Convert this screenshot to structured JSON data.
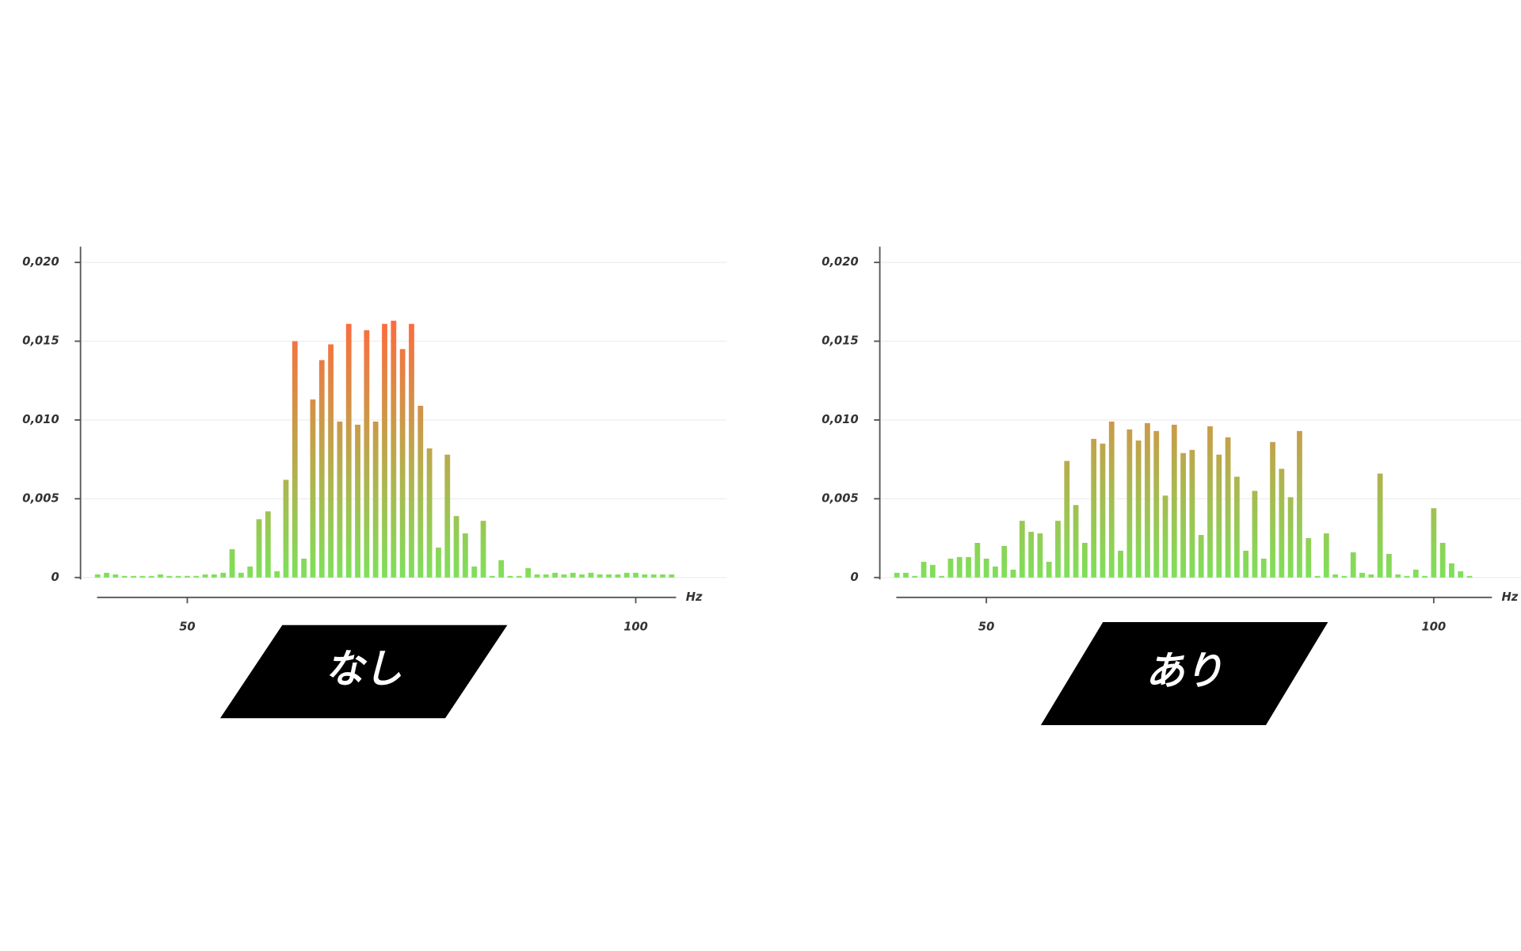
{
  "chart_data": [
    {
      "type": "bar",
      "caption": "なし",
      "x_label": "Hz",
      "x": [
        40,
        41,
        42,
        43,
        44,
        45,
        46,
        47,
        48,
        49,
        50,
        51,
        52,
        53,
        54,
        55,
        56,
        57,
        58,
        59,
        60,
        61,
        62,
        63,
        64,
        65,
        66,
        67,
        68,
        69,
        70,
        71,
        72,
        73,
        74,
        75,
        76,
        77,
        78,
        79,
        80,
        81,
        82,
        83,
        84,
        85,
        86,
        87,
        88,
        89,
        90,
        91,
        92,
        93,
        94,
        95,
        96,
        97,
        98,
        99,
        100,
        101,
        102,
        103,
        104
      ],
      "values": [
        0.0002,
        0.0003,
        0.0002,
        0.0001,
        0.0001,
        0.0001,
        0.0001,
        0.0002,
        0.0001,
        0.0001,
        0.0001,
        0.0001,
        0.0002,
        0.0002,
        0.0003,
        0.0018,
        0.0003,
        0.0007,
        0.0037,
        0.0042,
        0.0004,
        0.0062,
        0.015,
        0.0012,
        0.0113,
        0.0138,
        0.0148,
        0.0099,
        0.0161,
        0.0097,
        0.0157,
        0.0099,
        0.0161,
        0.0163,
        0.0145,
        0.0161,
        0.0109,
        0.0082,
        0.0019,
        0.0078,
        0.0039,
        0.0028,
        0.0007,
        0.0036,
        0.0001,
        0.0011,
        0.0001,
        0.0001,
        0.0006,
        0.0002,
        0.0002,
        0.0003,
        0.0002,
        0.0003,
        0.0002,
        0.0003,
        0.0002,
        0.0002,
        0.0002,
        0.0003,
        0.0003,
        0.0002,
        0.0002,
        0.0002,
        0.0002
      ],
      "colors": [
        "#7ee05a",
        "#ff6a3d"
      ],
      "xlim": [
        39.5,
        104.5
      ],
      "xticks": [
        50,
        100
      ],
      "ylim": [
        0,
        0.021
      ],
      "yticks": [
        0,
        {
          "value": 0.005,
          "label": "0,005"
        },
        {
          "value": 0.01,
          "label": "0,010"
        },
        {
          "value": 0.015,
          "label": "0,015"
        },
        {
          "value": 0.02,
          "label": "0,020"
        }
      ],
      "grid": true
    },
    {
      "type": "bar",
      "caption": "あり",
      "x_label": "Hz",
      "x": [
        40,
        41,
        42,
        43,
        44,
        45,
        46,
        47,
        48,
        49,
        50,
        51,
        52,
        53,
        54,
        55,
        56,
        57,
        58,
        59,
        60,
        61,
        62,
        63,
        64,
        65,
        66,
        67,
        68,
        69,
        70,
        71,
        72,
        73,
        74,
        75,
        76,
        77,
        78,
        79,
        80,
        81,
        82,
        83,
        84,
        85,
        86,
        87,
        88,
        89,
        90,
        91,
        92,
        93,
        94,
        95,
        96,
        97,
        98,
        99,
        100,
        101,
        102,
        103,
        104
      ],
      "values": [
        0.0003,
        0.0003,
        0.0001,
        0.001,
        0.0008,
        0.0001,
        0.0012,
        0.0013,
        0.0013,
        0.0022,
        0.0012,
        0.0007,
        0.002,
        0.0005,
        0.0036,
        0.0029,
        0.0028,
        0.001,
        0.0036,
        0.0074,
        0.0046,
        0.0022,
        0.0088,
        0.0085,
        0.0099,
        0.0017,
        0.0094,
        0.0087,
        0.0098,
        0.0093,
        0.0052,
        0.0097,
        0.0079,
        0.0081,
        0.0027,
        0.0096,
        0.0078,
        0.0089,
        0.0064,
        0.0017,
        0.0055,
        0.0012,
        0.0086,
        0.0069,
        0.0051,
        0.0093,
        0.0025,
        0.0001,
        0.0028,
        0.0002,
        0.0001,
        0.0016,
        0.0003,
        0.0002,
        0.0066,
        0.0015,
        0.0002,
        0.0001,
        0.0005,
        0.0001,
        0.0044,
        0.0022,
        0.0009,
        0.0004,
        0.0001
      ],
      "colors": [
        "#7ee05a",
        "#ff6a3d"
      ],
      "xlim": [
        39.5,
        106.5
      ],
      "xticks": [
        50,
        100
      ],
      "ylim": [
        0,
        0.021
      ],
      "yticks": [
        0,
        {
          "value": 0.005,
          "label": "0,005"
        },
        {
          "value": 0.01,
          "label": "0,010"
        },
        {
          "value": 0.015,
          "label": "0,015"
        },
        {
          "value": 0.02,
          "label": "0,020"
        }
      ],
      "grid": true
    }
  ]
}
